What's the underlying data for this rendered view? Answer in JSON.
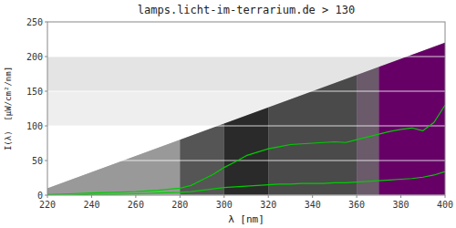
{
  "chart_data": {
    "type": "line",
    "title": "lamps.licht-im-terrarium.de > 130",
    "x_label": "λ [nm]",
    "y_label": "I(λ)  [μW/cm²/nm]",
    "x": [
      220,
      230,
      240,
      250,
      260,
      270,
      280,
      285,
      290,
      295,
      300,
      305,
      310,
      315,
      320,
      325,
      330,
      335,
      340,
      345,
      350,
      355,
      360,
      365,
      370,
      375,
      380,
      385,
      390,
      395,
      400
    ],
    "series": [
      {
        "color": "#00cc00",
        "values": [
          1,
          2,
          3,
          4,
          5,
          7,
          10,
          14,
          22,
          30,
          40,
          48,
          57,
          62,
          67,
          70,
          73,
          74,
          75,
          76,
          77,
          76,
          80,
          84,
          88,
          92,
          95,
          97,
          93,
          105,
          130
        ]
      },
      {
        "color": "#00cc00",
        "values": [
          0,
          0,
          1,
          1,
          2,
          3,
          4,
          5,
          7,
          9,
          11,
          12,
          13,
          14,
          15,
          16,
          16,
          17,
          17,
          17,
          18,
          18,
          19,
          20,
          21,
          22,
          23,
          24,
          26,
          29,
          34
        ]
      }
    ],
    "xlim": [
      220,
      400
    ],
    "ylim": [
      0,
      250
    ],
    "xticks": [
      220,
      240,
      260,
      280,
      300,
      320,
      340,
      360,
      380,
      400
    ],
    "yticks": [
      0,
      50,
      100,
      150,
      200,
      250
    ],
    "grid": true,
    "ramp": {
      "x": [
        220,
        400
      ],
      "values": [
        10,
        220
      ],
      "color": "#bbbbbb"
    },
    "bands": [
      {
        "xmin": 220,
        "xmax": 280,
        "color": "#999999"
      },
      {
        "xmin": 280,
        "xmax": 300,
        "color": "#555555"
      },
      {
        "xmin": 300,
        "xmax": 320,
        "color": "#2a2a2a"
      },
      {
        "xmin": 320,
        "xmax": 360,
        "color": "#4a4a4a"
      },
      {
        "xmin": 360,
        "xmax": 370,
        "color": "#6a5a6a"
      },
      {
        "xmin": 370,
        "xmax": 400,
        "color": "#660066"
      }
    ],
    "hbands": [
      {
        "y1": 100,
        "y2": 150,
        "color": "#eeeeee"
      },
      {
        "y1": 150,
        "y2": 200,
        "color": "#e4e4e4"
      }
    ]
  }
}
